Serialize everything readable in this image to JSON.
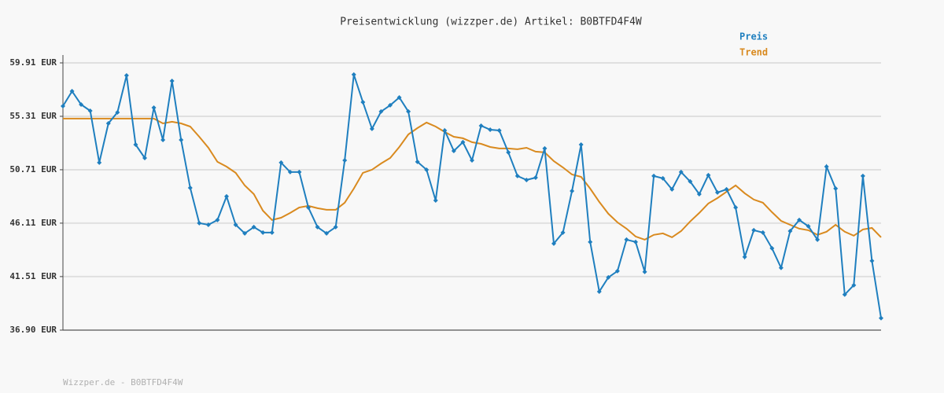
{
  "chart_data": {
    "type": "line",
    "title": "Preisentwicklung (wizzper.de) Artikel: B0BTFD4F4W",
    "footer": "Wizzper.de - B0BTFD4F4W",
    "legend": "top-right",
    "grid": true,
    "ylim": [
      36.9,
      59.91
    ],
    "yticks": [
      {
        "value": 36.9,
        "label": "36.90 EUR"
      },
      {
        "value": 41.51,
        "label": "41.51 EUR"
      },
      {
        "value": 46.11,
        "label": "46.11 EUR"
      },
      {
        "value": 50.71,
        "label": "50.71 EUR"
      },
      {
        "value": 55.31,
        "label": "55.31 EUR"
      },
      {
        "value": 59.91,
        "label": "59.91 EUR"
      }
    ],
    "series": [
      {
        "name": "Preis",
        "color": "#1f7fbf",
        "markers": true,
        "values": [
          56.19,
          57.47,
          56.32,
          55.78,
          51.32,
          54.7,
          55.65,
          58.83,
          52.87,
          51.72,
          56.05,
          53.28,
          58.35,
          53.28,
          49.15,
          46.11,
          45.97,
          46.38,
          48.41,
          45.97,
          45.23,
          45.77,
          45.3,
          45.3,
          51.32,
          50.51,
          50.51,
          47.46,
          45.77,
          45.23,
          45.77,
          51.52,
          58.9,
          56.53,
          54.23,
          55.72,
          56.26,
          56.93,
          55.72,
          51.39,
          50.71,
          48.07,
          54.09,
          52.33,
          53.08,
          51.52,
          54.5,
          54.16,
          54.09,
          52.2,
          50.17,
          49.83,
          50.03,
          52.54,
          44.35,
          45.3,
          48.88,
          52.87,
          44.49,
          40.22,
          41.44,
          41.98,
          44.69,
          44.49,
          41.92,
          50.17,
          49.97,
          49.02,
          50.51,
          49.7,
          48.61,
          50.24,
          48.75,
          49.02,
          47.46,
          43.2,
          45.5,
          45.3,
          43.95,
          42.26,
          45.43,
          46.38,
          45.84,
          44.69,
          50.98,
          49.09,
          39.96,
          40.77,
          50.17,
          42.86,
          37.93
        ]
      },
      {
        "name": "Trend",
        "color": "#d98a1f",
        "markers": false,
        "values": [
          55.11,
          55.11,
          55.11,
          55.11,
          55.11,
          55.11,
          55.11,
          55.11,
          55.11,
          55.11,
          55.11,
          54.7,
          54.84,
          54.7,
          54.43,
          53.55,
          52.6,
          51.39,
          50.98,
          50.44,
          49.36,
          48.61,
          47.19,
          46.38,
          46.58,
          46.99,
          47.46,
          47.6,
          47.4,
          47.26,
          47.26,
          47.87,
          49.09,
          50.44,
          50.71,
          51.25,
          51.72,
          52.67,
          53.75,
          54.3,
          54.77,
          54.43,
          53.96,
          53.55,
          53.42,
          53.08,
          52.94,
          52.67,
          52.54,
          52.54,
          52.47,
          52.6,
          52.27,
          52.2,
          51.45,
          50.91,
          50.3,
          50.1,
          49.09,
          47.94,
          46.92,
          46.18,
          45.64,
          44.96,
          44.69,
          45.1,
          45.23,
          44.89,
          45.43,
          46.25,
          46.99,
          47.8,
          48.27,
          48.82,
          49.36,
          48.68,
          48.14,
          47.87,
          47.06,
          46.31,
          45.97,
          45.64,
          45.5,
          45.1,
          45.37,
          45.97,
          45.37,
          45.03,
          45.57,
          45.7,
          44.89
        ]
      }
    ]
  }
}
